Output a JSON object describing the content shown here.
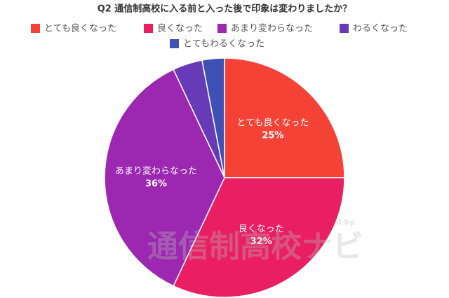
{
  "chart_data": {
    "type": "pie",
    "title": "Q2 通信制高校に入る前と入った後で印象は変わりましたか？",
    "categories": [
      "とても良くなった",
      "良くなった",
      "あまり変わらなった",
      "わるくなった",
      "とてもわるくなった"
    ],
    "values": [
      25,
      32,
      36,
      4,
      3
    ],
    "value_labels": [
      "25%",
      "32%",
      "36%",
      null,
      null
    ],
    "colors": [
      "#f44336",
      "#e91e63",
      "#9c27b0",
      "#673ab7",
      "#3f51b5"
    ],
    "watermark": [
      "Produced by",
      "通信制高校ナビ"
    ]
  }
}
